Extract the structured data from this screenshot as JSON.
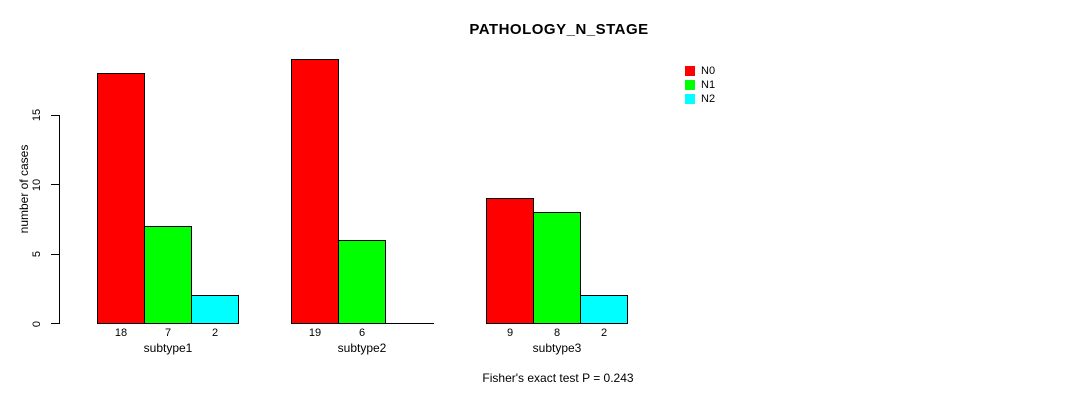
{
  "chart_data": {
    "type": "bar",
    "title": "PATHOLOGY_N_STAGE",
    "ylabel": "number of cases",
    "xlabel": "",
    "categories": [
      "subtype1",
      "subtype2",
      "subtype3"
    ],
    "series": [
      {
        "name": "N0",
        "color": "#FF0000",
        "values": [
          18,
          19,
          9
        ]
      },
      {
        "name": "N1",
        "color": "#00FF00",
        "values": [
          7,
          6,
          8
        ]
      },
      {
        "name": "N2",
        "color": "#00FFFF",
        "values": [
          2,
          0,
          2
        ]
      }
    ],
    "bar_value_labels": [
      [
        "18",
        "7",
        "2"
      ],
      [
        "19",
        "6",
        ""
      ],
      [
        "9",
        "8",
        "2"
      ]
    ],
    "yticks": [
      0,
      5,
      10,
      15
    ],
    "ylim": [
      0,
      19
    ],
    "grid": false,
    "legend_position": "top-right",
    "footnote": "Fisher's exact test P = 0.243"
  }
}
